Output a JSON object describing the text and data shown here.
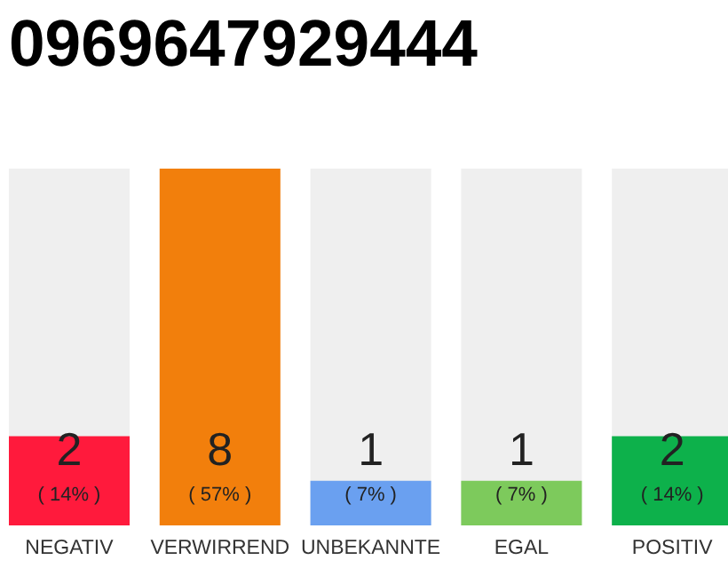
{
  "chart_data": {
    "type": "bar",
    "title": "0969647929444",
    "categories": [
      "NEGATIV",
      "VERWIRREND",
      "UNBEKANNTE",
      "EGAL",
      "POSITIV"
    ],
    "values": [
      2,
      8,
      1,
      1,
      2
    ],
    "colors": [
      "#ff1a3c",
      "#f27f0c",
      "#6aa0f0",
      "#7dca5c",
      "#0db14b"
    ],
    "ylim": [
      0,
      8
    ],
    "data_labels": true,
    "annotations": [
      "( 14% )",
      "( 57% )",
      "( 7% )",
      "( 7% )",
      "( 14% )"
    ]
  }
}
